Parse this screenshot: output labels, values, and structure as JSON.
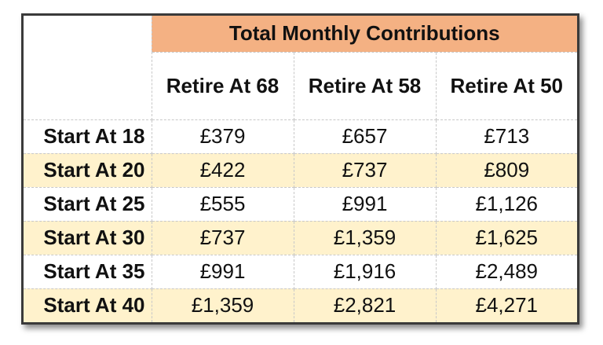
{
  "table": {
    "title": "Total Monthly Contributions",
    "columns": [
      "Retire At 68",
      "Retire At 58",
      "Retire At 50"
    ],
    "rows": [
      {
        "label": "Start At 18",
        "values": [
          "£379",
          "£657",
          "£713"
        ]
      },
      {
        "label": "Start At 20",
        "values": [
          "£422",
          "£737",
          "£809"
        ]
      },
      {
        "label": "Start At 25",
        "values": [
          "£555",
          "£991",
          "£1,126"
        ]
      },
      {
        "label": "Start At 30",
        "values": [
          "£737",
          "£1,359",
          "£1,625"
        ]
      },
      {
        "label": "Start At 35",
        "values": [
          "£991",
          "£1,916",
          "£2,489"
        ]
      },
      {
        "label": "Start At 40",
        "values": [
          "£1,359",
          "£2,821",
          "£4,271"
        ]
      }
    ]
  },
  "colors": {
    "header_fill": "#f4b183",
    "alt_row_fill": "#fff2cc",
    "border": "#3a3a3a"
  }
}
